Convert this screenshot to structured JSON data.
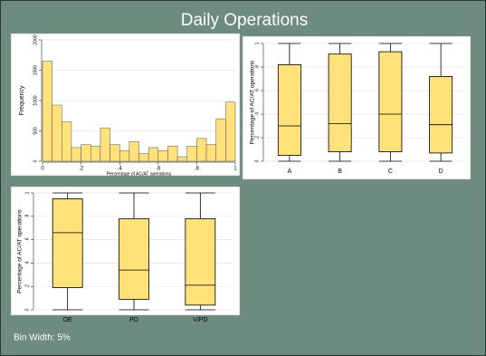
{
  "title": "Daily Operations",
  "note": "Bin Width: 5%",
  "chart_data": [
    {
      "type": "histogram",
      "xlabel": "Percentage of AC/AT operations",
      "ylabel": "Frequency",
      "bins": [
        0,
        0.05,
        0.1,
        0.15,
        0.2,
        0.25,
        0.3,
        0.35,
        0.4,
        0.45,
        0.5,
        0.55,
        0.6,
        0.65,
        0.7,
        0.75,
        0.8,
        0.85,
        0.9,
        0.95,
        1
      ],
      "values": [
        1650,
        925,
        650,
        225,
        275,
        250,
        550,
        275,
        175,
        325,
        125,
        225,
        175,
        250,
        75,
        250,
        375,
        275,
        700,
        975
      ],
      "color": "#ffe27a",
      "xlim": [
        0,
        1
      ],
      "xticks": [
        0,
        {
          "value": 0.2,
          "label": ".2"
        },
        {
          "value": 0.4,
          "label": ".4"
        },
        {
          "value": 0.6,
          "label": ".6"
        },
        {
          "value": 0.8,
          "label": ".8"
        },
        1
      ],
      "ylim": [
        0,
        2000
      ],
      "yticks": [
        0,
        500,
        1000,
        1500,
        2000
      ],
      "grid": true
    },
    {
      "type": "box",
      "ylabel": "Percentage of AC/AT operations",
      "categories": [
        "A",
        "B",
        "C",
        "D"
      ],
      "boxes": [
        {
          "min": 0,
          "q1": 0.05,
          "median": 0.3,
          "q3": 0.82,
          "max": 1
        },
        {
          "min": 0,
          "q1": 0.08,
          "median": 0.32,
          "q3": 0.91,
          "max": 1
        },
        {
          "min": 0,
          "q1": 0.08,
          "median": 0.4,
          "q3": 0.93,
          "max": 1
        },
        {
          "min": 0,
          "q1": 0.07,
          "median": 0.31,
          "q3": 0.72,
          "max": 1
        }
      ],
      "color": "#ffe27a",
      "ylim": [
        0,
        1
      ],
      "yticks": [
        0,
        {
          "value": 0.2,
          "label": ".2"
        },
        {
          "value": 0.4,
          "label": ".4"
        },
        {
          "value": 0.6,
          "label": ".6"
        },
        {
          "value": 0.8,
          "label": ".8"
        },
        1
      ],
      "grid": true
    },
    {
      "type": "box",
      "ylabel": "Percentage of AC/AT operations",
      "categories": [
        "OE",
        "PD",
        "V/PD"
      ],
      "boxes": [
        {
          "min": 0,
          "q1": 0.19,
          "median": 0.66,
          "q3": 0.95,
          "max": 1
        },
        {
          "min": 0,
          "q1": 0.09,
          "median": 0.34,
          "q3": 0.78,
          "max": 1
        },
        {
          "min": 0,
          "q1": 0.04,
          "median": 0.21,
          "q3": 0.78,
          "max": 1
        }
      ],
      "color": "#ffe27a",
      "ylim": [
        0,
        1
      ],
      "yticks": [
        0,
        {
          "value": 0.2,
          "label": ".2"
        },
        {
          "value": 0.4,
          "label": ".4"
        },
        {
          "value": 0.6,
          "label": ".6"
        },
        {
          "value": 0.8,
          "label": ".8"
        },
        1
      ],
      "grid": true
    }
  ]
}
